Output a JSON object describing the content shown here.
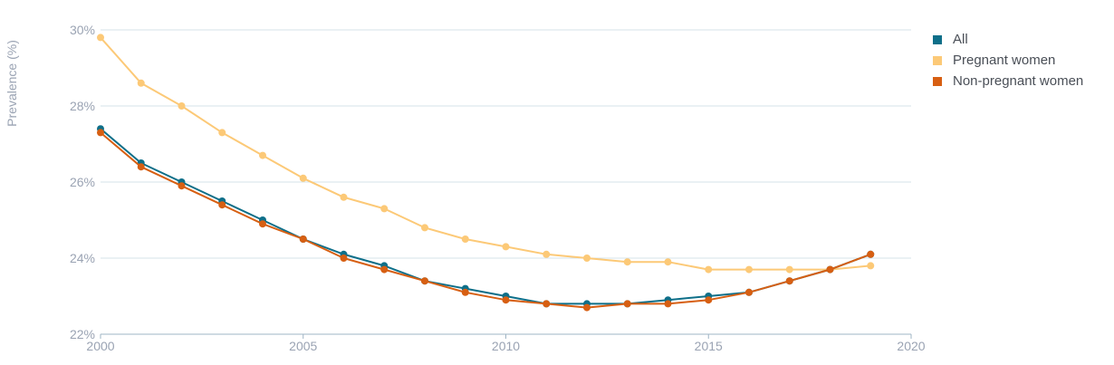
{
  "chart_data": {
    "type": "line",
    "ylabel": "Prevalence (%)",
    "xlabel": "",
    "xlim": [
      2000,
      2020
    ],
    "ylim": [
      22,
      30
    ],
    "x_ticks": [
      "2000",
      "2005",
      "2010",
      "2015",
      "2020"
    ],
    "y_ticks": [
      "22%",
      "24%",
      "26%",
      "28%",
      "30%"
    ],
    "grid": "horizontal",
    "legend_position": "top-right",
    "x": [
      2000,
      2001,
      2002,
      2003,
      2004,
      2005,
      2006,
      2007,
      2008,
      2009,
      2010,
      2011,
      2012,
      2013,
      2014,
      2015,
      2016,
      2017,
      2018,
      2019
    ],
    "series": [
      {
        "name": "All",
        "color": "#0e6f89",
        "values": [
          27.4,
          26.5,
          26.0,
          25.5,
          25.0,
          24.5,
          24.1,
          23.8,
          23.4,
          23.2,
          23.0,
          22.8,
          22.8,
          22.8,
          22.9,
          23.0,
          23.1,
          23.4,
          23.7,
          24.1
        ]
      },
      {
        "name": "Pregnant women",
        "color": "#fcc977",
        "values": [
          29.8,
          28.6,
          28.0,
          27.3,
          26.7,
          26.1,
          25.6,
          25.3,
          24.8,
          24.5,
          24.3,
          24.1,
          24.0,
          23.9,
          23.9,
          23.7,
          23.7,
          23.7,
          23.7,
          23.8
        ]
      },
      {
        "name": "Non-pregnant women",
        "color": "#d75f12",
        "values": [
          27.3,
          26.4,
          25.9,
          25.4,
          24.9,
          24.5,
          24.0,
          23.7,
          23.4,
          23.1,
          22.9,
          22.8,
          22.7,
          22.8,
          22.8,
          22.9,
          23.1,
          23.4,
          23.7,
          24.1
        ]
      }
    ]
  }
}
